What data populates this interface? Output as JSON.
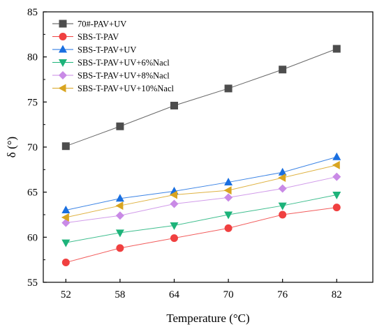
{
  "chart_data": {
    "type": "line",
    "xlabel": "Temperature (°C)",
    "ylabel": "δ (°)",
    "x": [
      52,
      58,
      64,
      70,
      76,
      82
    ],
    "xticks": [
      "52",
      "58",
      "64",
      "70",
      "76",
      "82"
    ],
    "yticks": [
      "55",
      "60",
      "65",
      "70",
      "75",
      "80",
      "85"
    ],
    "xlim": [
      49.5,
      86
    ],
    "ylim": [
      55,
      85
    ],
    "grid": false,
    "legend_position": "top-left",
    "series": [
      {
        "name": "70#-PAV+UV",
        "color": "#4d4d4d",
        "marker": "square",
        "values": [
          70.1,
          72.3,
          74.6,
          76.5,
          78.6,
          80.9
        ]
      },
      {
        "name": "SBS-T-PAV",
        "color": "#f04040",
        "marker": "circle",
        "values": [
          57.2,
          58.8,
          59.9,
          61.0,
          62.5,
          63.3
        ]
      },
      {
        "name": "SBS-T-PAV+UV",
        "color": "#1a6fe0",
        "marker": "triangle-up",
        "values": [
          63.0,
          64.3,
          65.1,
          66.1,
          67.2,
          68.9
        ]
      },
      {
        "name": "SBS-T-PAV+UV+6%Nacl",
        "color": "#1db37a",
        "marker": "triangle-down",
        "values": [
          59.4,
          60.5,
          61.3,
          62.5,
          63.5,
          64.7
        ]
      },
      {
        "name": "SBS-T-PAV+UV+8%Nacl",
        "color": "#c98ae6",
        "marker": "diamond",
        "values": [
          61.6,
          62.4,
          63.7,
          64.4,
          65.4,
          66.7
        ]
      },
      {
        "name": "SBS-T-PAV+UV+10%Nacl",
        "color": "#d9a520",
        "marker": "triangle-left",
        "values": [
          62.2,
          63.5,
          64.7,
          65.2,
          66.6,
          68.0
        ]
      }
    ]
  }
}
